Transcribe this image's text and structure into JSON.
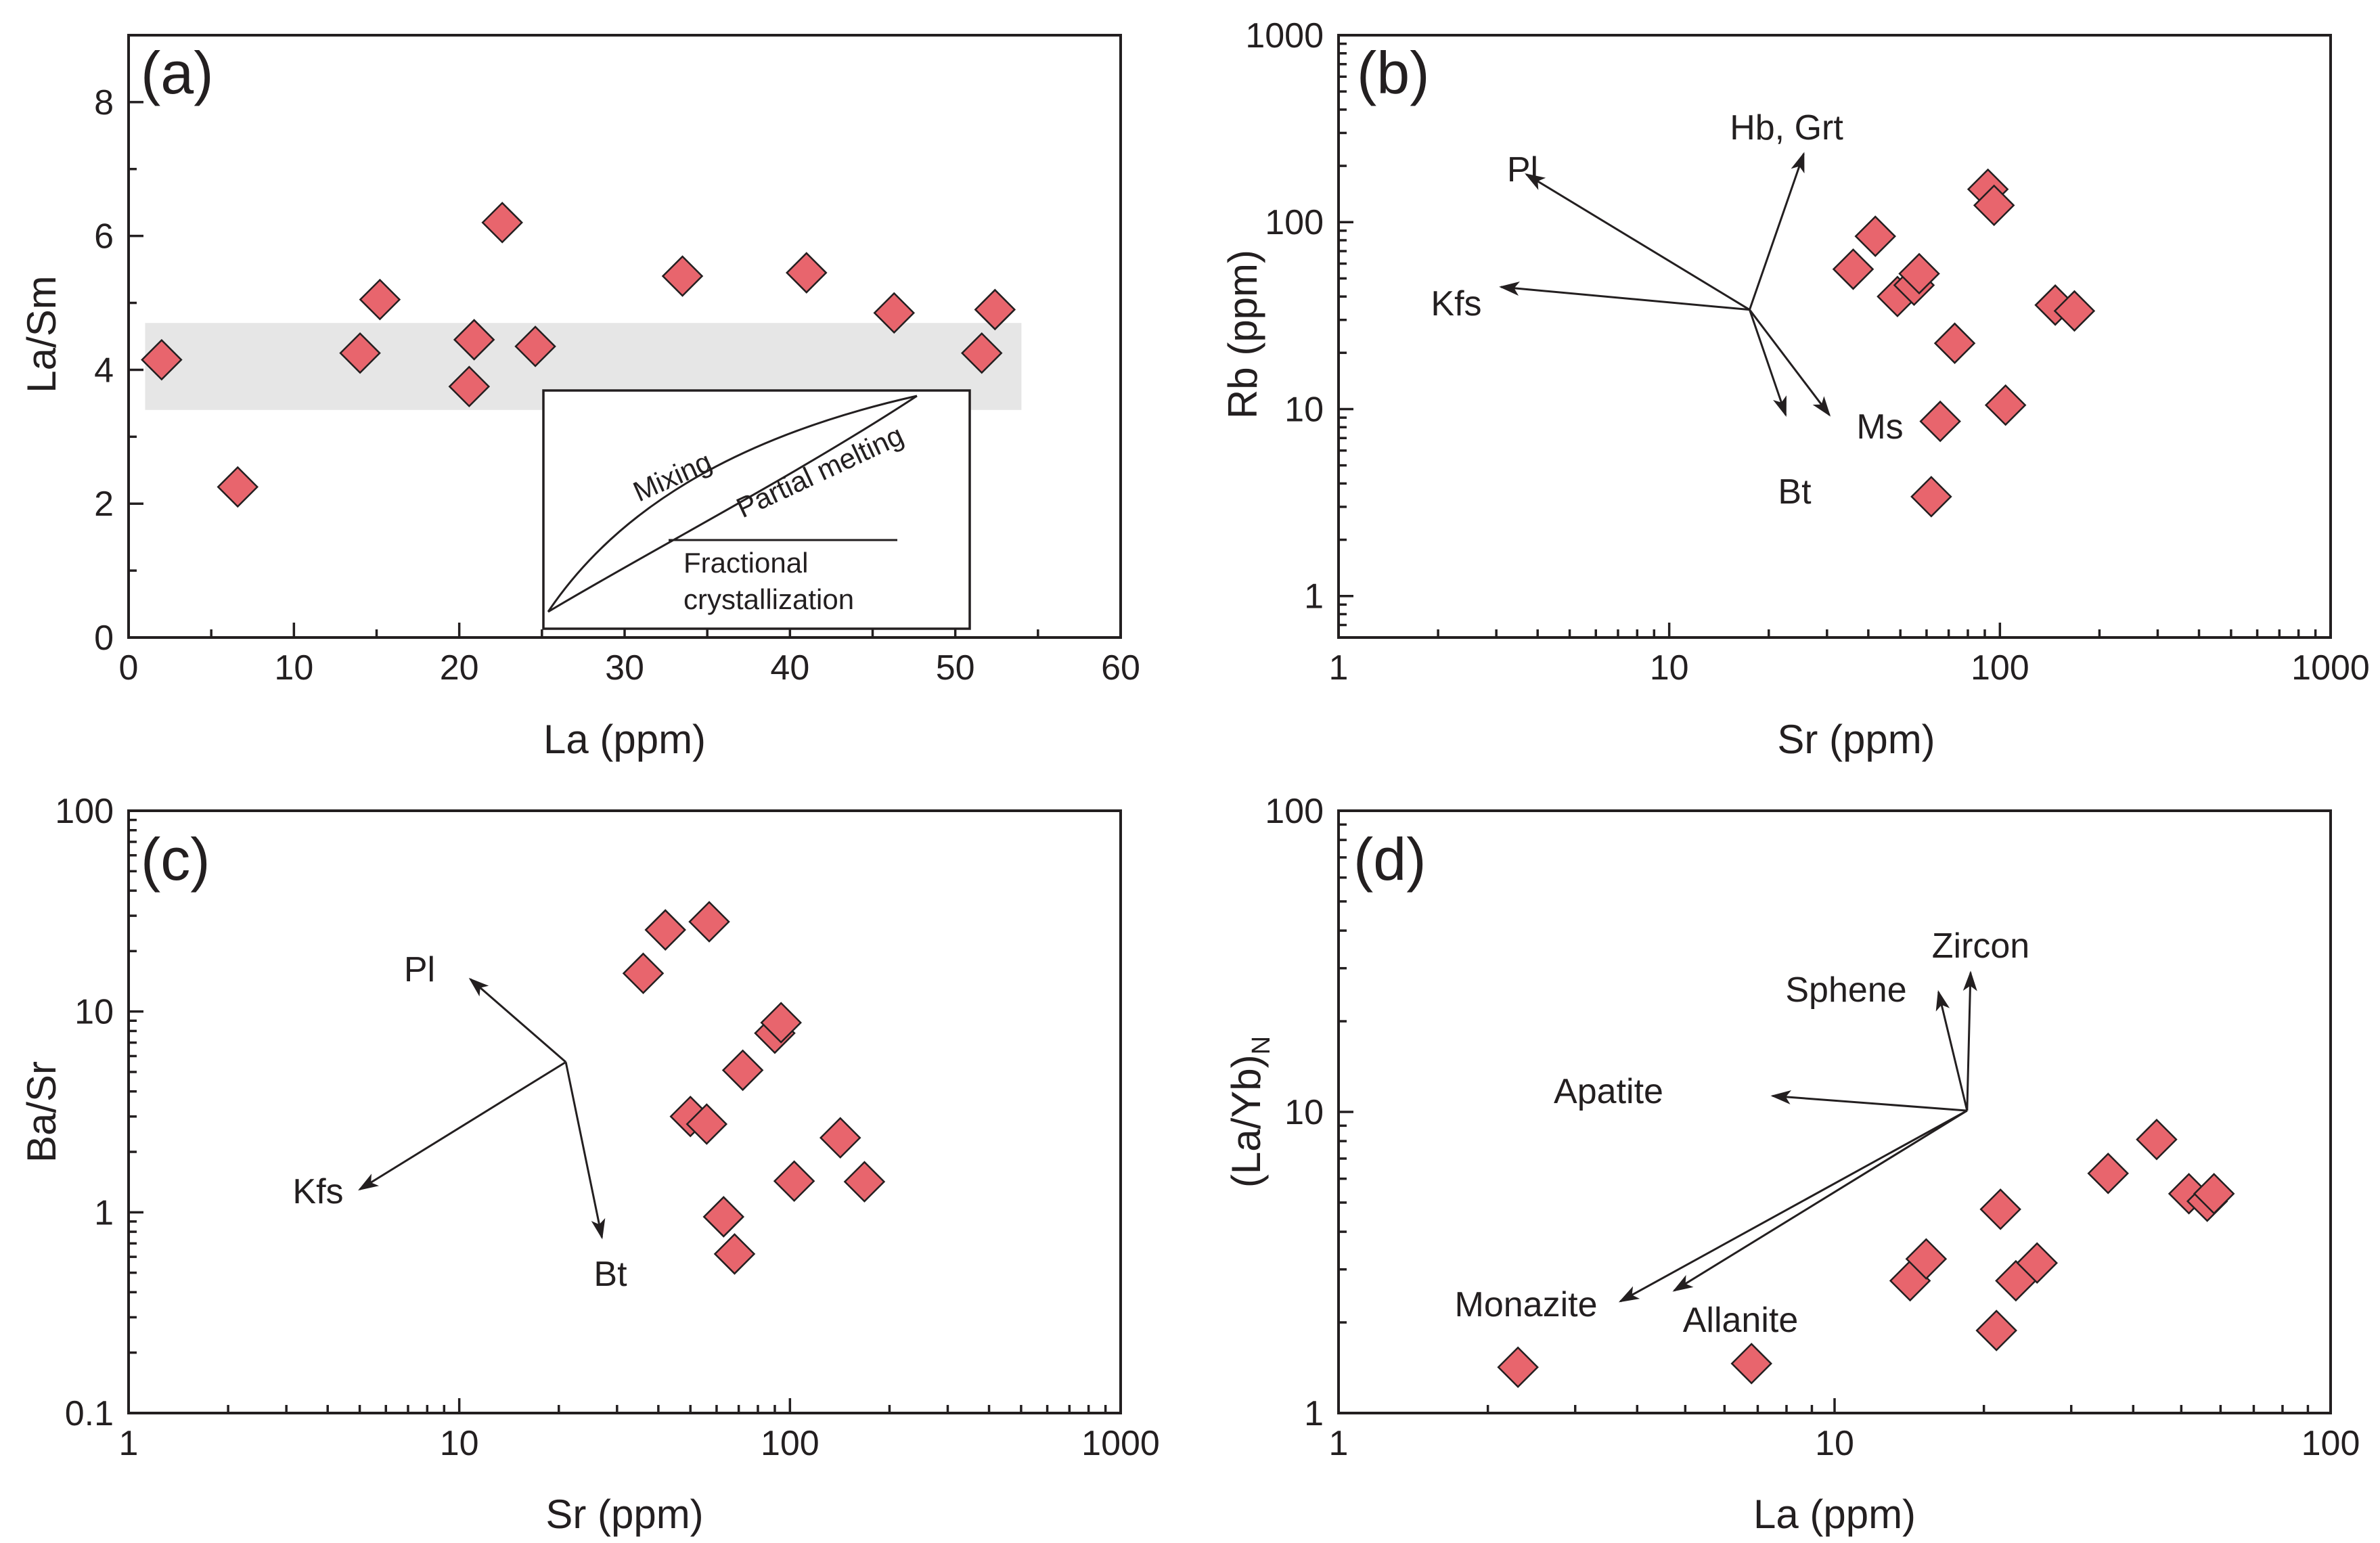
{
  "colors": {
    "marker": "#e8656d",
    "band": "#e6e6e6",
    "ink": "#231f20"
  },
  "chart_data": [
    {
      "panel": "(a)",
      "type": "scatter",
      "xlabel": "La (ppm)",
      "ylabel": "La/Sm",
      "xscale": "linear",
      "yscale": "linear",
      "xlim": [
        0,
        60
      ],
      "ylim": [
        0,
        9
      ],
      "xticks": [
        0,
        10,
        20,
        30,
        40,
        50,
        60
      ],
      "xtick_labels": [
        "0",
        "10",
        "20",
        "30",
        "40",
        "50",
        "60"
      ],
      "yticks": [
        0,
        2,
        4,
        6,
        8
      ],
      "ytick_labels": [
        "0",
        "2",
        "4",
        "6",
        "8"
      ],
      "band": {
        "x": [
          1,
          54
        ],
        "y": [
          3.4,
          4.7
        ]
      },
      "points": [
        {
          "x": 2.0,
          "y": 4.15
        },
        {
          "x": 6.6,
          "y": 2.25
        },
        {
          "x": 14.0,
          "y": 4.25
        },
        {
          "x": 15.2,
          "y": 5.05
        },
        {
          "x": 20.6,
          "y": 3.75
        },
        {
          "x": 20.9,
          "y": 4.45
        },
        {
          "x": 22.6,
          "y": 6.2
        },
        {
          "x": 24.6,
          "y": 4.35
        },
        {
          "x": 33.5,
          "y": 5.4
        },
        {
          "x": 41.0,
          "y": 5.45
        },
        {
          "x": 46.3,
          "y": 4.85
        },
        {
          "x": 51.6,
          "y": 4.25
        },
        {
          "x": 52.4,
          "y": 4.9
        }
      ],
      "inset": {
        "labels": [
          "Mixing",
          "Partial melting",
          "Fractional",
          "crystallization"
        ]
      }
    },
    {
      "panel": "(b)",
      "type": "scatter",
      "xlabel": "Sr (ppm)",
      "ylabel": "Rb (ppm)",
      "xscale": "log",
      "yscale": "log",
      "xlim": [
        1,
        1000
      ],
      "ylim": [
        0.6,
        1000
      ],
      "xticks": [
        1,
        10,
        100,
        1000
      ],
      "xtick_labels": [
        "1",
        "10",
        "100",
        "1000"
      ],
      "yticks": [
        1,
        10,
        100,
        1000
      ],
      "ytick_labels": [
        "1",
        "10",
        "100",
        "1000"
      ],
      "points": [
        {
          "x": 36,
          "y": 56
        },
        {
          "x": 42,
          "y": 84
        },
        {
          "x": 49,
          "y": 40
        },
        {
          "x": 55,
          "y": 46
        },
        {
          "x": 57,
          "y": 53
        },
        {
          "x": 62,
          "y": 3.4
        },
        {
          "x": 66,
          "y": 8.6
        },
        {
          "x": 73,
          "y": 22.5
        },
        {
          "x": 92,
          "y": 150
        },
        {
          "x": 96,
          "y": 123
        },
        {
          "x": 104,
          "y": 10.5
        },
        {
          "x": 147,
          "y": 36
        },
        {
          "x": 168,
          "y": 33.5
        }
      ],
      "vectors": {
        "origin": {
          "x": 17.5,
          "y": 34
        },
        "items": [
          {
            "label": "Pl",
            "to": {
              "x": 3.7,
              "y": 180
            }
          },
          {
            "label": "Kfs",
            "to": {
              "x": 3.1,
              "y": 45
            }
          },
          {
            "label": "Hb, Grt",
            "to": {
              "x": 25.5,
              "y": 232
            }
          },
          {
            "label": "Bt",
            "to": {
              "x": 22.5,
              "y": 9.3
            }
          },
          {
            "label": "Ms",
            "to": {
              "x": 30.5,
              "y": 9.3
            }
          }
        ]
      }
    },
    {
      "panel": "(c)",
      "type": "scatter",
      "xlabel": "Sr (ppm)",
      "ylabel": "Ba/Sr",
      "xscale": "log",
      "yscale": "log",
      "xlim": [
        1,
        1000
      ],
      "ylim": [
        0.1,
        100
      ],
      "xticks": [
        1,
        10,
        100,
        1000
      ],
      "xtick_labels": [
        "1",
        "10",
        "100",
        "1000"
      ],
      "yticks": [
        0.1,
        1,
        10,
        100
      ],
      "ytick_labels": [
        "0.1",
        "1",
        "10",
        "100"
      ],
      "points": [
        {
          "x": 36,
          "y": 15.5
        },
        {
          "x": 42,
          "y": 25.5
        },
        {
          "x": 50,
          "y": 3.0
        },
        {
          "x": 56,
          "y": 2.75
        },
        {
          "x": 57,
          "y": 28
        },
        {
          "x": 63,
          "y": 0.95
        },
        {
          "x": 68,
          "y": 0.62
        },
        {
          "x": 72,
          "y": 5.1
        },
        {
          "x": 90,
          "y": 7.8
        },
        {
          "x": 94,
          "y": 8.8
        },
        {
          "x": 103,
          "y": 1.43
        },
        {
          "x": 142,
          "y": 2.35
        },
        {
          "x": 168,
          "y": 1.42
        }
      ],
      "vectors": {
        "origin": {
          "x": 21,
          "y": 5.6
        },
        "items": [
          {
            "label": "Pl",
            "to": {
              "x": 10.8,
              "y": 14.5
            }
          },
          {
            "label": "Kfs",
            "to": {
              "x": 5.0,
              "y": 1.3
            }
          },
          {
            "label": "Bt",
            "to": {
              "x": 27,
              "y": 0.75
            }
          }
        ]
      }
    },
    {
      "panel": "(d)",
      "type": "scatter",
      "xlabel": "La (ppm)",
      "ylabel": "(La/Yb)",
      "ylabel_sub": "N",
      "xscale": "log",
      "yscale": "log",
      "xlim": [
        1,
        100
      ],
      "ylim": [
        1,
        100
      ],
      "xticks": [
        1,
        10,
        100
      ],
      "xtick_labels": [
        "1",
        "10",
        "100"
      ],
      "yticks": [
        1,
        10,
        100
      ],
      "ytick_labels": [
        "1",
        "10",
        "100"
      ],
      "points": [
        {
          "x": 2.3,
          "y": 1.42
        },
        {
          "x": 6.8,
          "y": 1.46
        },
        {
          "x": 14.2,
          "y": 2.75
        },
        {
          "x": 15.3,
          "y": 3.25
        },
        {
          "x": 21.2,
          "y": 1.88
        },
        {
          "x": 21.6,
          "y": 4.75
        },
        {
          "x": 23.2,
          "y": 2.75
        },
        {
          "x": 25.6,
          "y": 3.15
        },
        {
          "x": 35.6,
          "y": 6.25
        },
        {
          "x": 44.6,
          "y": 8.1
        },
        {
          "x": 51.8,
          "y": 5.35
        },
        {
          "x": 56.4,
          "y": 5.05
        },
        {
          "x": 58.2,
          "y": 5.35
        }
      ],
      "vectors": {
        "origin": {
          "x": 18.5,
          "y": 10.1
        },
        "items": [
          {
            "label": "Zircon",
            "to": {
              "x": 18.8,
              "y": 29
            }
          },
          {
            "label": "Sphene",
            "to": {
              "x": 16.2,
              "y": 25
            }
          },
          {
            "label": "Apatite",
            "to": {
              "x": 7.5,
              "y": 11.3
            }
          },
          {
            "label": "Monazite",
            "to": {
              "x": 3.7,
              "y": 2.35
            }
          },
          {
            "label": "Allanite",
            "to": {
              "x": 4.75,
              "y": 2.55
            }
          }
        ]
      }
    }
  ]
}
